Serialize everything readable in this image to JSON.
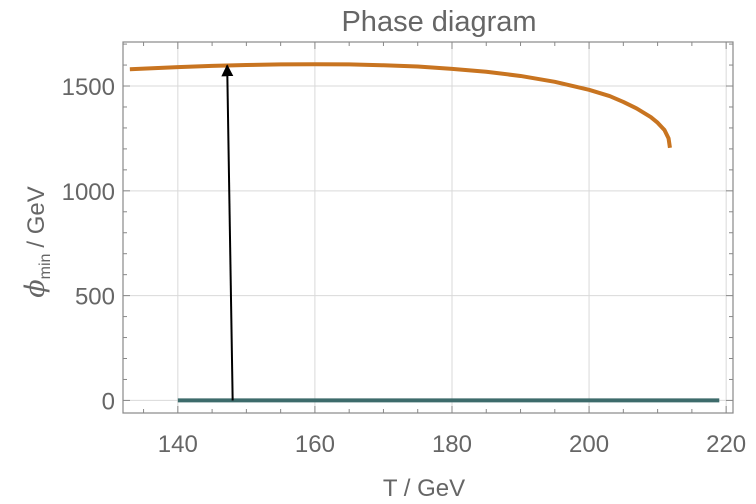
{
  "chart_data": {
    "type": "line",
    "title": "Phase diagram",
    "xlabel": "T / GeV",
    "ylabel": {
      "symbol": "ϕ",
      "subscript": "min",
      "unit": "/ GeV"
    },
    "xlim": [
      132,
      221
    ],
    "ylim": [
      -60,
      1710
    ],
    "xticks": [
      140,
      160,
      180,
      200,
      220
    ],
    "yticks": [
      0,
      500,
      1000,
      1500
    ],
    "grid": true,
    "colors": {
      "broken_phase": "#c87420",
      "symmetric_phase": "#3d6b6b",
      "arrow": "#000000",
      "grid": "#d9d9d9",
      "frame": "#888888",
      "text": "#666666"
    },
    "series": [
      {
        "points": [
          [
            133,
            1580
          ],
          [
            140,
            1590
          ],
          [
            145,
            1596
          ],
          [
            150,
            1600
          ],
          [
            155,
            1603
          ],
          [
            160,
            1604
          ],
          [
            165,
            1603
          ],
          [
            170,
            1599
          ],
          [
            175,
            1593
          ],
          [
            180,
            1582
          ],
          [
            185,
            1568
          ],
          [
            190,
            1548
          ],
          [
            195,
            1520
          ],
          [
            200,
            1482
          ],
          [
            203,
            1452
          ],
          [
            205,
            1424
          ],
          [
            207,
            1392
          ],
          [
            209,
            1352
          ],
          [
            210,
            1325
          ],
          [
            211,
            1290
          ],
          [
            211.6,
            1250
          ],
          [
            211.8,
            1205
          ]
        ]
      },
      {
        "points": [
          [
            140,
            0
          ],
          [
            219,
            0
          ]
        ]
      }
    ],
    "annotations": [
      {
        "type": "arrow",
        "from": [
          148,
          0
        ],
        "to": [
          147.2,
          1598
        ]
      }
    ]
  }
}
